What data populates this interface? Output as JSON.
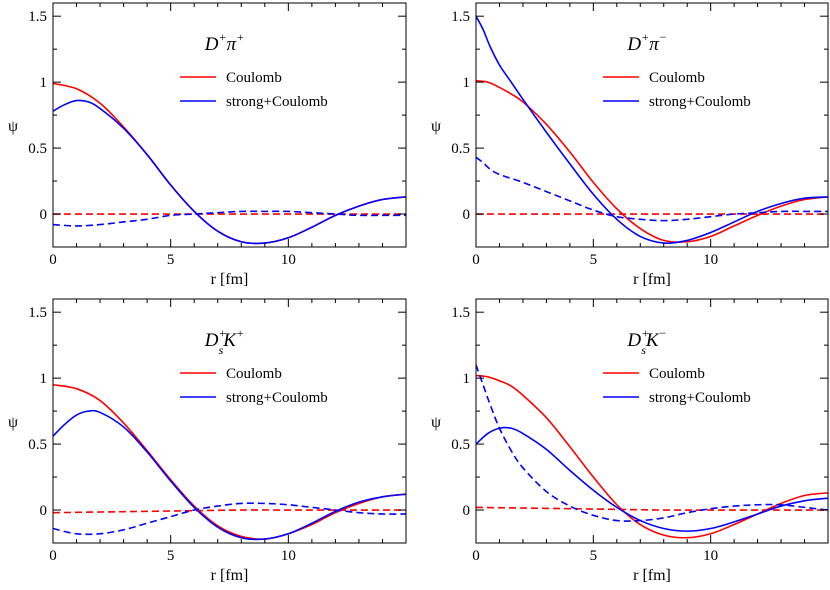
{
  "chart_data": [
    {
      "type": "line",
      "title": {
        "main": "D",
        "main_sup": "+",
        "partner": "π",
        "partner_sup": "+",
        "partner_sub": ""
      },
      "xlabel": "r  [fm]",
      "ylabel": "ψ",
      "xlim": [
        0,
        15
      ],
      "ylim": [
        -0.25,
        1.6
      ],
      "xticks": [
        0,
        5,
        10
      ],
      "yticks": [
        0,
        0.5,
        1,
        1.5
      ],
      "legend": [
        "Coulomb",
        "strong+Coulomb"
      ],
      "series": [
        {
          "name": "Coulomb",
          "color": "#ff0000",
          "style": "solid",
          "x": [
            0,
            1,
            2,
            3,
            4,
            5,
            6,
            7,
            8,
            9,
            10,
            11,
            12,
            13,
            14,
            15
          ],
          "y": [
            0.99,
            0.95,
            0.84,
            0.66,
            0.45,
            0.22,
            0.02,
            -0.13,
            -0.21,
            -0.22,
            -0.18,
            -0.1,
            -0.01,
            0.06,
            0.11,
            0.13
          ]
        },
        {
          "name": "Coulomb (dashed)",
          "color": "#ff0000",
          "style": "dashed",
          "x": [
            0,
            3,
            6,
            9,
            12,
            15
          ],
          "y": [
            0.0,
            0.0,
            0.0,
            0.0,
            0.0,
            0.0
          ]
        },
        {
          "name": "strong+Coulomb",
          "color": "#0000ff",
          "style": "solid",
          "x": [
            0,
            0.5,
            1,
            1.5,
            2,
            3,
            4,
            5,
            6,
            7,
            8,
            9,
            10,
            11,
            12,
            13,
            14,
            15
          ],
          "y": [
            0.78,
            0.83,
            0.86,
            0.85,
            0.8,
            0.65,
            0.45,
            0.22,
            0.02,
            -0.13,
            -0.21,
            -0.22,
            -0.18,
            -0.1,
            -0.01,
            0.06,
            0.11,
            0.13
          ]
        },
        {
          "name": "strong+Coulomb (dashed)",
          "color": "#0000ff",
          "style": "dashed",
          "x": [
            0,
            1,
            2,
            3,
            4,
            5,
            6,
            7,
            8,
            9,
            10,
            11,
            12,
            13,
            14,
            15
          ],
          "y": [
            -0.08,
            -0.09,
            -0.08,
            -0.06,
            -0.04,
            -0.01,
            0.0,
            0.01,
            0.02,
            0.02,
            0.02,
            0.01,
            0.0,
            -0.01,
            -0.01,
            -0.01
          ]
        }
      ]
    },
    {
      "type": "line",
      "title": {
        "main": "D",
        "main_sup": "+",
        "partner": "π",
        "partner_sup": "−",
        "partner_sub": ""
      },
      "xlabel": "r  [fm]",
      "ylabel": "ψ",
      "xlim": [
        0,
        15
      ],
      "ylim": [
        -0.25,
        1.6
      ],
      "xticks": [
        0,
        5,
        10
      ],
      "yticks": [
        0,
        0.5,
        1,
        1.5
      ],
      "legend": [
        "Coulomb",
        "strong+Coulomb"
      ],
      "series": [
        {
          "name": "Coulomb",
          "color": "#ff0000",
          "style": "solid",
          "x": [
            0,
            0.5,
            1,
            1.5,
            2,
            3,
            4,
            5,
            6,
            7,
            8,
            9,
            10,
            11,
            12,
            13,
            14,
            15
          ],
          "y": [
            1.01,
            1.0,
            0.96,
            0.91,
            0.85,
            0.68,
            0.47,
            0.24,
            0.04,
            -0.11,
            -0.2,
            -0.21,
            -0.17,
            -0.09,
            -0.01,
            0.06,
            0.11,
            0.13
          ]
        },
        {
          "name": "Coulomb (dashed)",
          "color": "#ff0000",
          "style": "dashed",
          "x": [
            0,
            3,
            6,
            9,
            12,
            15
          ],
          "y": [
            0.0,
            0.0,
            0.0,
            0.0,
            0.0,
            0.0
          ]
        },
        {
          "name": "strong+Coulomb",
          "color": "#0000ff",
          "style": "solid",
          "x": [
            0,
            0.3,
            0.6,
            1,
            1.5,
            2,
            3,
            4,
            5,
            6,
            7,
            8,
            9,
            10,
            11,
            12,
            13,
            14,
            15
          ],
          "y": [
            1.5,
            1.4,
            1.27,
            1.13,
            1.0,
            0.87,
            0.62,
            0.38,
            0.15,
            -0.04,
            -0.17,
            -0.22,
            -0.2,
            -0.14,
            -0.06,
            0.02,
            0.08,
            0.12,
            0.13
          ]
        },
        {
          "name": "strong+Coulomb (dashed)",
          "color": "#0000ff",
          "style": "dashed",
          "x": [
            0,
            0.3,
            0.6,
            1,
            2,
            3,
            4,
            5,
            6,
            7,
            8,
            9,
            10,
            11,
            12,
            13,
            14,
            15
          ],
          "y": [
            0.43,
            0.39,
            0.34,
            0.3,
            0.24,
            0.17,
            0.1,
            0.03,
            -0.02,
            -0.04,
            -0.05,
            -0.04,
            -0.02,
            0.0,
            0.01,
            0.02,
            0.02,
            0.02
          ]
        }
      ]
    },
    {
      "type": "line",
      "title": {
        "main": "D",
        "main_sup": "+",
        "main_sub": "s",
        "partner": "K",
        "partner_sup": "+",
        "partner_sub": ""
      },
      "xlabel": "r  [fm]",
      "ylabel": "ψ",
      "xlim": [
        0,
        15
      ],
      "ylim": [
        -0.25,
        1.6
      ],
      "xticks": [
        0,
        5,
        10
      ],
      "yticks": [
        0,
        0.5,
        1,
        1.5
      ],
      "legend": [
        "Coulomb",
        "strong+Coulomb"
      ],
      "series": [
        {
          "name": "Coulomb",
          "color": "#ff0000",
          "style": "solid",
          "x": [
            0,
            1,
            2,
            3,
            4,
            5,
            6,
            7,
            8,
            9,
            10,
            11,
            12,
            13,
            14,
            15
          ],
          "y": [
            0.95,
            0.92,
            0.83,
            0.66,
            0.45,
            0.23,
            0.03,
            -0.12,
            -0.2,
            -0.22,
            -0.18,
            -0.11,
            -0.02,
            0.05,
            0.1,
            0.12
          ]
        },
        {
          "name": "Coulomb (dashed)",
          "color": "#ff0000",
          "style": "dashed",
          "x": [
            0,
            2,
            4,
            6,
            8,
            10,
            12,
            15
          ],
          "y": [
            -0.02,
            -0.015,
            -0.01,
            -0.005,
            0.0,
            0.0,
            0.0,
            0.0
          ]
        },
        {
          "name": "strong+Coulomb",
          "color": "#0000ff",
          "style": "solid",
          "x": [
            0,
            0.5,
            1,
            1.5,
            2,
            3,
            4,
            5,
            6,
            7,
            8,
            9,
            10,
            11,
            12,
            13,
            14,
            15
          ],
          "y": [
            0.56,
            0.65,
            0.72,
            0.75,
            0.74,
            0.63,
            0.44,
            0.22,
            0.02,
            -0.13,
            -0.21,
            -0.22,
            -0.18,
            -0.1,
            -0.01,
            0.06,
            0.1,
            0.12
          ]
        },
        {
          "name": "strong+Coulomb (dashed)",
          "color": "#0000ff",
          "style": "dashed",
          "x": [
            0,
            1,
            2,
            3,
            4,
            5,
            6,
            7,
            8,
            9,
            10,
            11,
            12,
            13,
            14,
            15
          ],
          "y": [
            -0.14,
            -0.18,
            -0.18,
            -0.15,
            -0.1,
            -0.05,
            0.0,
            0.03,
            0.05,
            0.05,
            0.04,
            0.02,
            0.0,
            -0.02,
            -0.03,
            -0.03
          ]
        }
      ]
    },
    {
      "type": "line",
      "title": {
        "main": "D",
        "main_sup": "+",
        "main_sub": "s",
        "partner": "K",
        "partner_sup": "−",
        "partner_sub": ""
      },
      "xlabel": "r  [fm]",
      "ylabel": "ψ",
      "xlim": [
        0,
        15
      ],
      "ylim": [
        -0.25,
        1.6
      ],
      "xticks": [
        0,
        5,
        10
      ],
      "yticks": [
        0,
        0.5,
        1,
        1.5
      ],
      "legend": [
        "Coulomb",
        "strong+Coulomb"
      ],
      "series": [
        {
          "name": "Coulomb",
          "color": "#ff0000",
          "style": "solid",
          "x": [
            0,
            0.5,
            1,
            1.5,
            2,
            3,
            4,
            5,
            6,
            7,
            8,
            9,
            10,
            11,
            12,
            13,
            14,
            15
          ],
          "y": [
            1.02,
            1.01,
            0.98,
            0.94,
            0.87,
            0.7,
            0.48,
            0.25,
            0.04,
            -0.11,
            -0.19,
            -0.21,
            -0.18,
            -0.11,
            -0.03,
            0.05,
            0.11,
            0.13
          ]
        },
        {
          "name": "Coulomb (dashed)",
          "color": "#ff0000",
          "style": "dashed",
          "x": [
            0,
            2,
            4,
            6,
            8,
            10,
            12,
            15
          ],
          "y": [
            0.02,
            0.015,
            0.01,
            0.005,
            0.0,
            0.0,
            0.0,
            0.0
          ]
        },
        {
          "name": "strong+Coulomb",
          "color": "#0000ff",
          "style": "solid",
          "x": [
            0,
            0.5,
            1,
            1.5,
            2,
            3,
            4,
            5,
            6,
            7,
            8,
            9,
            10,
            11,
            12,
            13,
            14,
            15
          ],
          "y": [
            0.5,
            0.58,
            0.62,
            0.62,
            0.58,
            0.46,
            0.3,
            0.15,
            0.02,
            -0.08,
            -0.14,
            -0.16,
            -0.14,
            -0.09,
            -0.03,
            0.03,
            0.07,
            0.09
          ]
        },
        {
          "name": "strong+Coulomb (dashed)",
          "color": "#0000ff",
          "style": "dashed",
          "x": [
            0,
            0.3,
            0.6,
            1,
            1.5,
            2,
            3,
            4,
            5,
            6,
            7,
            8,
            9,
            10,
            11,
            12,
            13,
            14,
            15
          ],
          "y": [
            1.1,
            0.95,
            0.8,
            0.62,
            0.45,
            0.32,
            0.14,
            0.03,
            -0.04,
            -0.08,
            -0.08,
            -0.06,
            -0.02,
            0.01,
            0.03,
            0.04,
            0.04,
            0.02,
            0.0
          ]
        }
      ]
    }
  ]
}
